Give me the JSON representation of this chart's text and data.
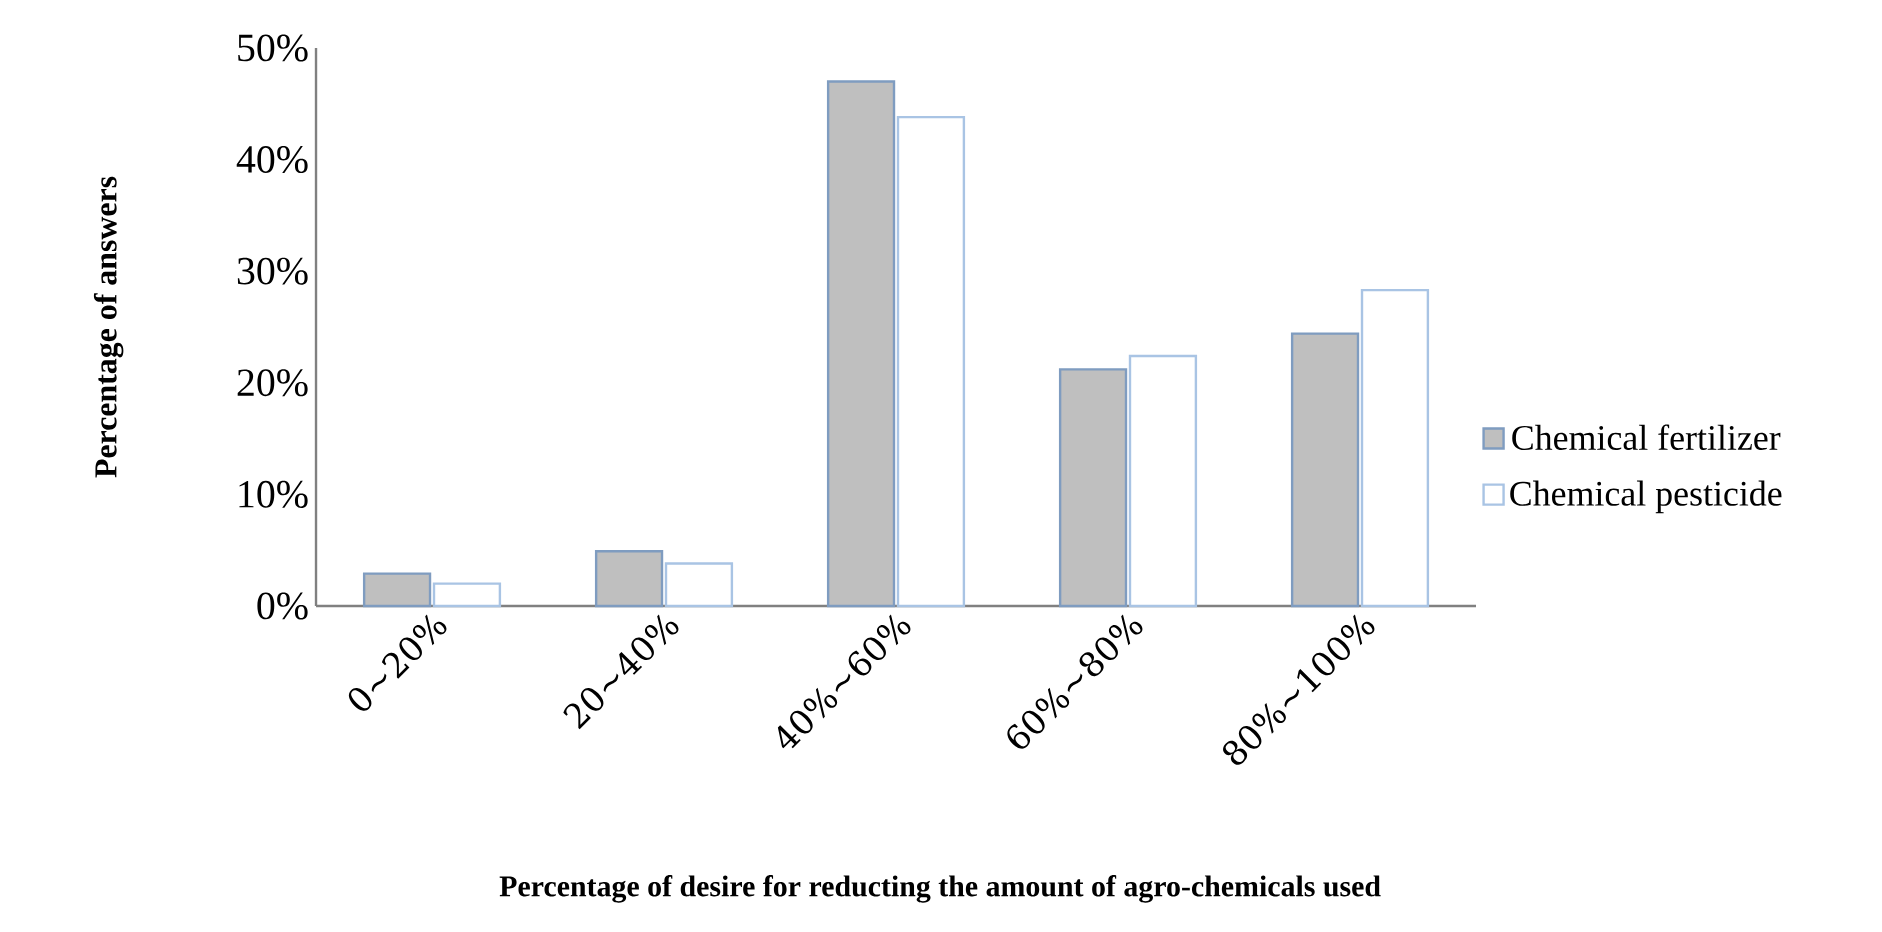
{
  "chart_data": {
    "type": "bar",
    "xlabel": "Percentage of desire for reducting the amount of agro-chemicals used",
    "ylabel": "Percentage of answers",
    "categories": [
      "0∼20%",
      "20∼40%",
      "40%∼60%",
      "60%∼80%",
      "80%∼100%"
    ],
    "series": [
      {
        "name": "Chemical fertilizer",
        "color": "#bfbfbf",
        "values": [
          2.9,
          4.9,
          47.0,
          21.2,
          24.4
        ]
      },
      {
        "name": "Chemical pesticide",
        "color": "#ffffff",
        "values": [
          2.0,
          3.8,
          43.8,
          22.4,
          28.3
        ]
      }
    ],
    "ylim": [
      0,
      50
    ],
    "yticks": [
      {
        "value": 0,
        "label": "0%"
      },
      {
        "value": 10,
        "label": "10%"
      },
      {
        "value": 20,
        "label": "20%"
      },
      {
        "value": 30,
        "label": "30%"
      },
      {
        "value": 40,
        "label": "40%"
      },
      {
        "value": 50,
        "label": "50%"
      }
    ],
    "grid": false,
    "legend": "right"
  }
}
